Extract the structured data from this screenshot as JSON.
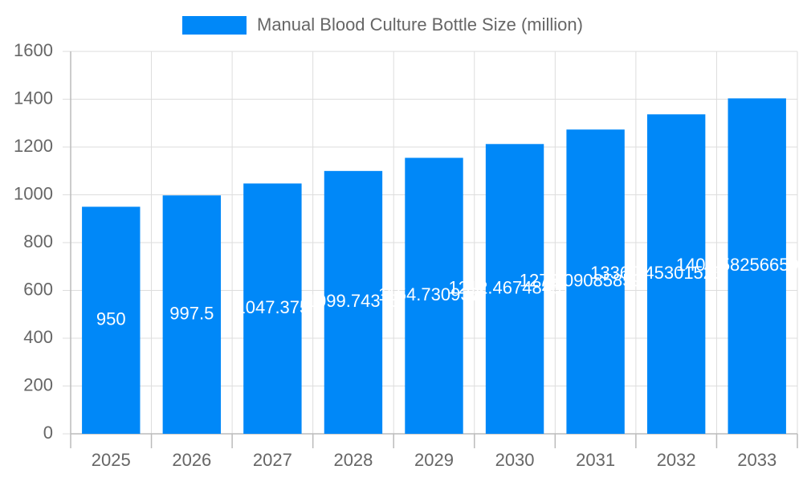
{
  "chart_data": {
    "type": "bar",
    "categories": [
      "2025",
      "2026",
      "2027",
      "2028",
      "2029",
      "2030",
      "2031",
      "2032",
      "2033"
    ],
    "series": [
      {
        "name": "Manual Blood Culture Bottle Size (million)",
        "color": "#0088f8",
        "values": [
          950,
          997.5,
          1047.375,
          1099.74375,
          1154.7309375,
          1212.467484375,
          1273.09085859375,
          1336.7453015234375,
          1403.582566599609
        ]
      }
    ],
    "ylim": [
      0,
      1600
    ],
    "yticks": [
      0,
      200,
      400,
      600,
      800,
      1000,
      1200,
      1400,
      1600
    ],
    "grid": true
  }
}
